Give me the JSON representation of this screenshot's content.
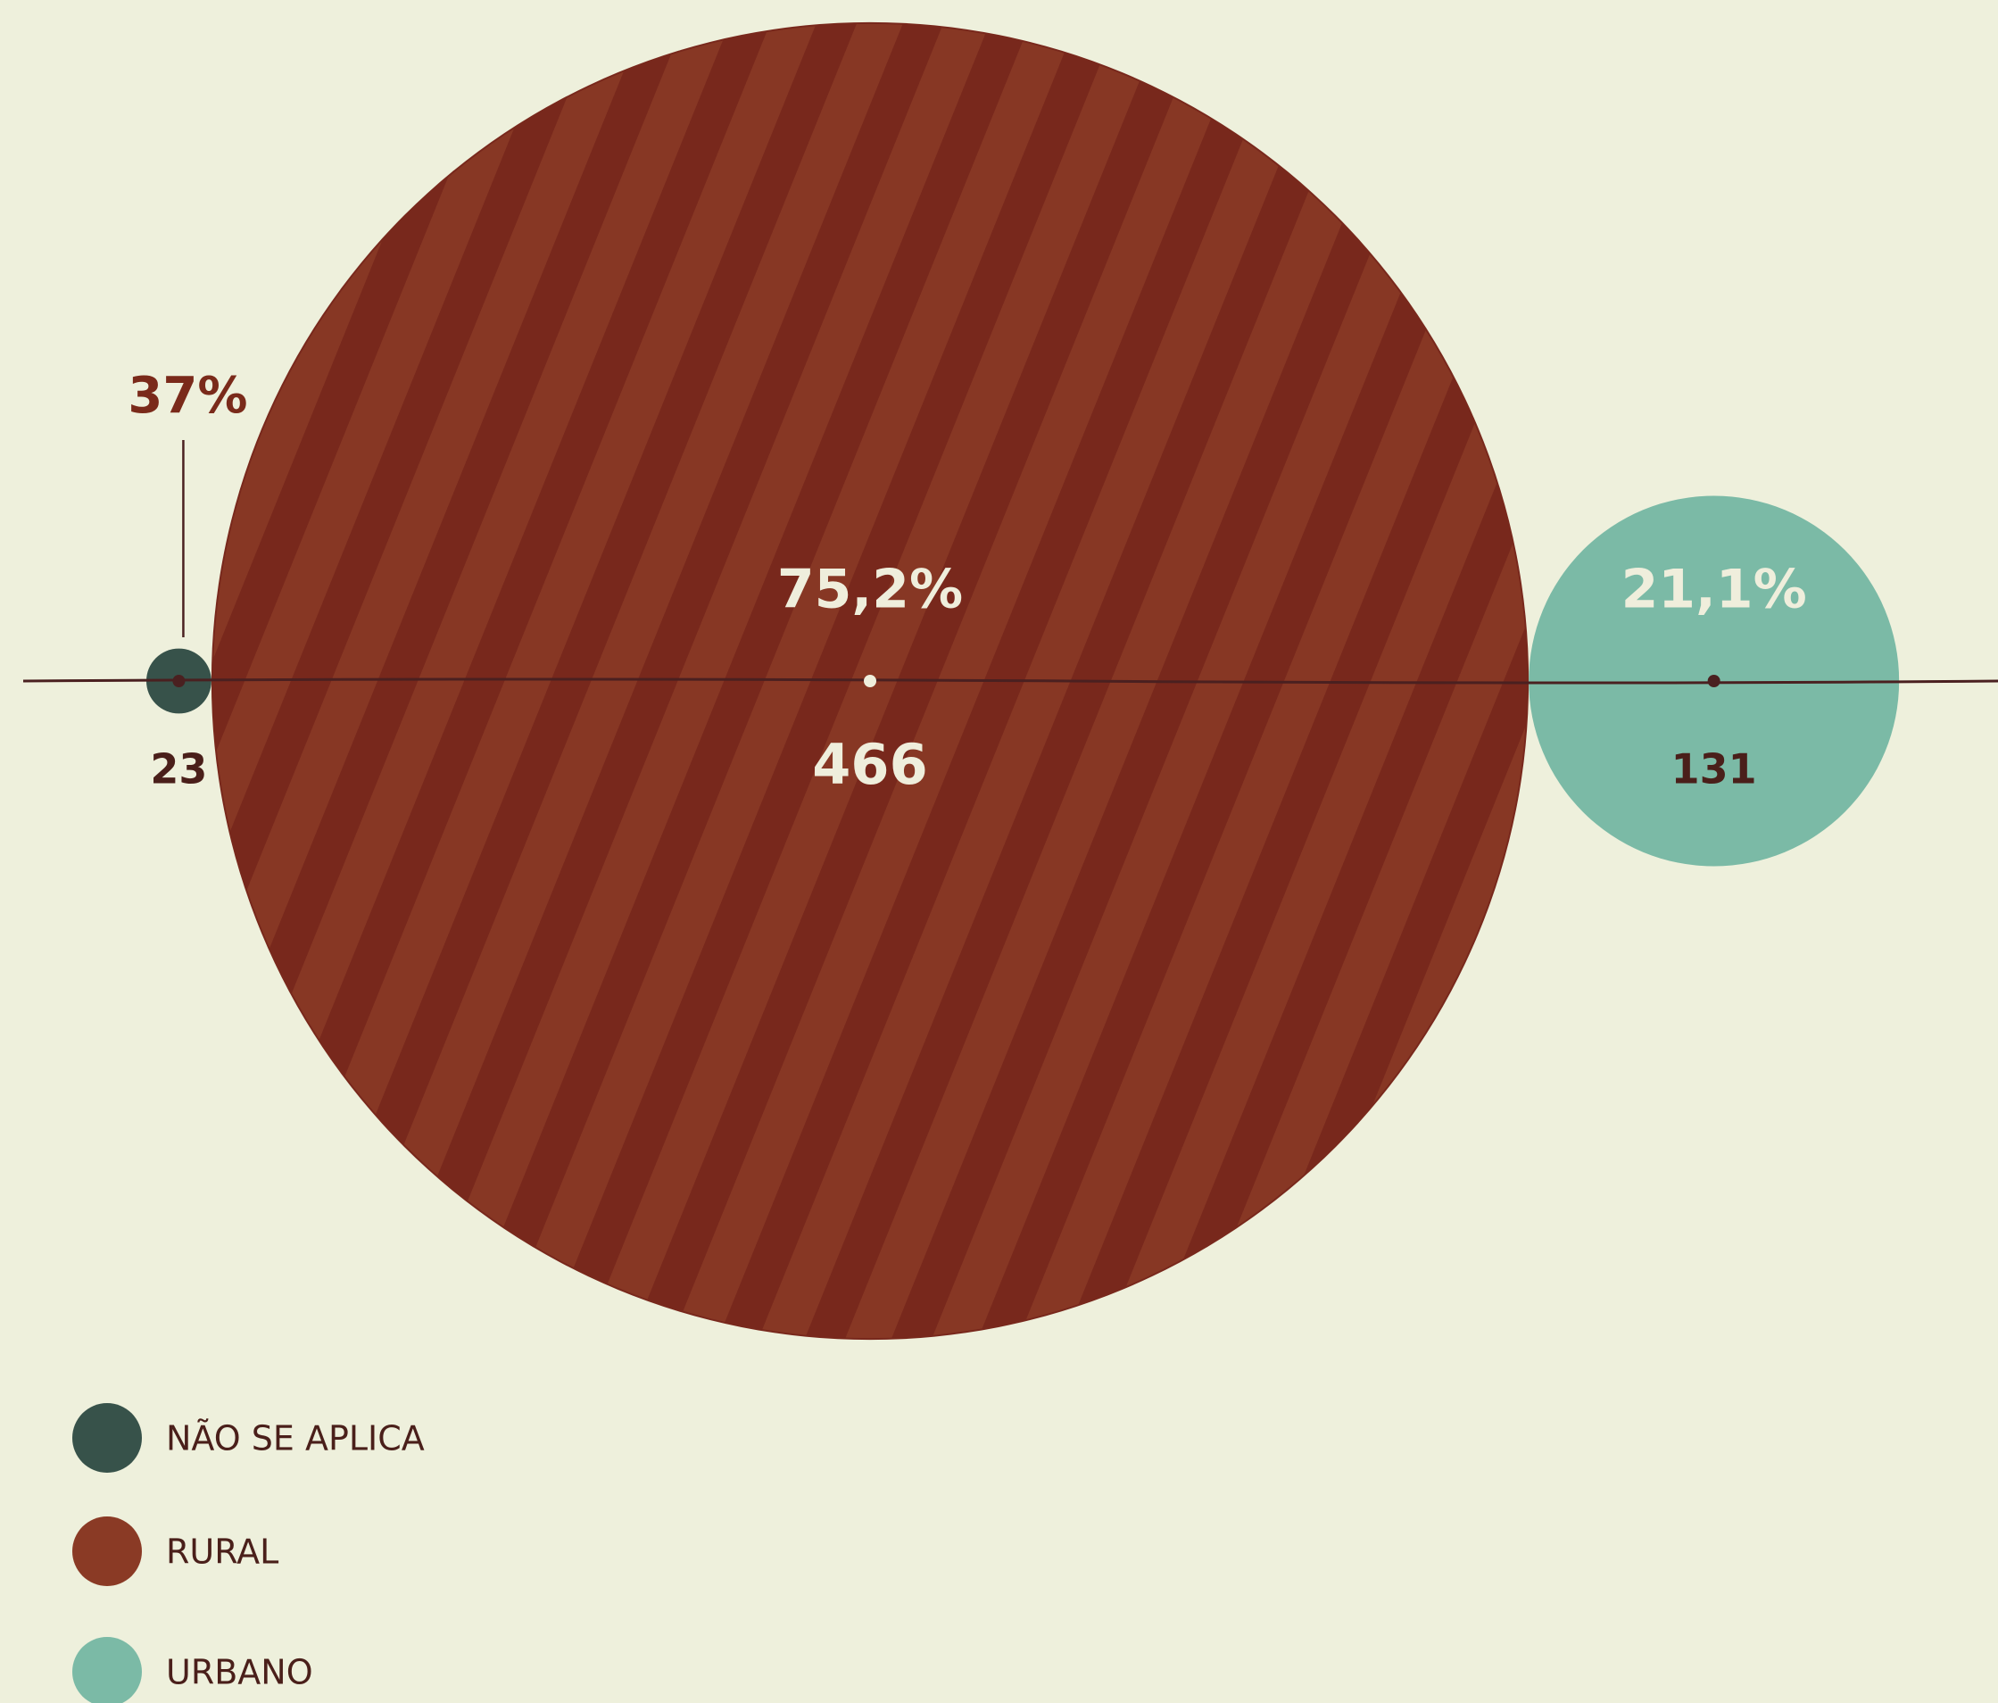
{
  "chart_data": {
    "type": "bubble",
    "categories": [
      "NÃO SE APLICA",
      "RURAL",
      "URBANO"
    ],
    "colors": [
      "#37524a",
      "#8a3a25",
      "#7bbaa6"
    ],
    "values": [
      37,
      75.2,
      21.1
    ],
    "value_labels": [
      "37%",
      "75,2%",
      "21,1%"
    ],
    "sizes": [
      23,
      466,
      131
    ]
  }
}
